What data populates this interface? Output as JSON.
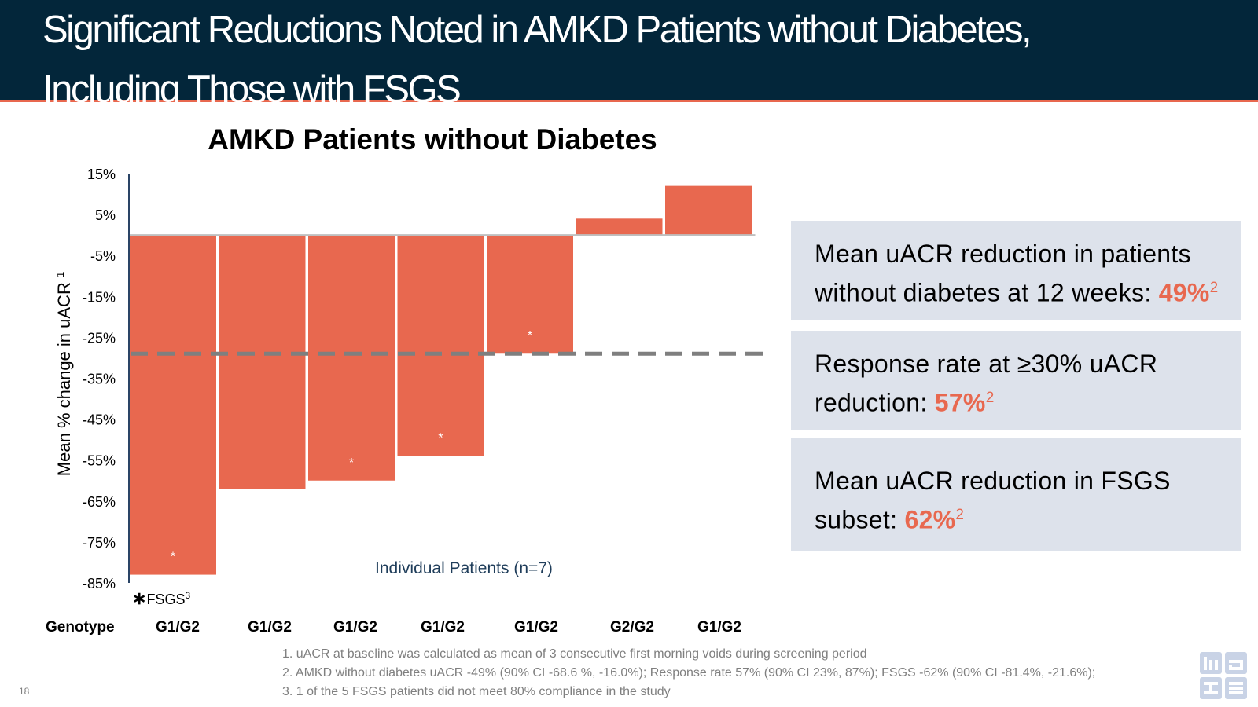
{
  "header": {
    "title_line1": "Significant Reductions Noted in AMKD Patients without Diabetes,",
    "title_line2": "Including Those with FSGS"
  },
  "chart_data": {
    "type": "bar",
    "title": "AMKD Patients without Diabetes",
    "ylabel": "Mean % change in uACR",
    "ylabel_ref": "1",
    "xlabel": "Individual Patients (n=7)",
    "ylim": [
      -85,
      15
    ],
    "yticks": [
      "15%",
      "5%",
      "-5%",
      "-15%",
      "-25%",
      "-35%",
      "-45%",
      "-55%",
      "-65%",
      "-75%",
      "-85%"
    ],
    "ytick_values": [
      15,
      5,
      -5,
      -15,
      -25,
      -35,
      -45,
      -55,
      -65,
      -75,
      -85
    ],
    "values": [
      -83,
      -62,
      -60,
      -54,
      -29,
      4,
      12
    ],
    "fsgs": [
      true,
      false,
      true,
      true,
      true,
      false,
      false
    ],
    "genotypes": [
      "G1/G2",
      "G1/G2",
      "G1/G2",
      "G1/G2",
      "G1/G2",
      "G2/G2",
      "G1/G2"
    ],
    "mean_reference": -29,
    "bar_color": "#e8684f",
    "reference_line_color": "#7f7f7f",
    "marker": "*",
    "legend": {
      "symbol": "∗",
      "label": "FSGS",
      "ref": "3"
    },
    "genotype_label": "Genotype"
  },
  "boxes": [
    {
      "line1": "Mean uACR reduction in patients",
      "line2_prefix": "without diabetes at 12 weeks: ",
      "value": "49%",
      "ref": "2"
    },
    {
      "line1": "Response rate at ≥30% uACR",
      "line2_prefix": "reduction: ",
      "value": "57%",
      "ref": "2"
    },
    {
      "line1": "Mean uACR reduction in FSGS",
      "line2_prefix": "subset: ",
      "value": "62%",
      "ref": "2"
    }
  ],
  "footnotes": [
    "1. uACR at baseline was calculated as mean of 3 consecutive first morning voids during screening period",
    "2. AMKD without diabetes uACR -49% (90% CI -68.6 %, -16.0%); Response rate 57% (90% CI 23%, 87%);  FSGS -62% (90% CI -81.4%, -21.6%);",
    "3. 1 of the 5 FSGS patients did not meet 80% compliance in the study"
  ],
  "page_number": "18",
  "logo_text": "maze",
  "colors": {
    "header_bg": "#03263a",
    "accent": "#e8684f",
    "box_bg": "#dde2eb",
    "logo": "#c9d3e6"
  }
}
